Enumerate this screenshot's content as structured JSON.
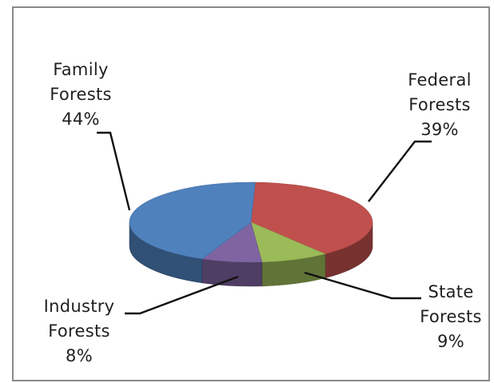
{
  "chart_data": {
    "type": "pie",
    "title": "",
    "slices": [
      {
        "name": "Federal Forests",
        "value": 39,
        "value_label": "39%",
        "label_lines": [
          "Federal",
          "Forests",
          "39%"
        ],
        "color": "#c0504d"
      },
      {
        "name": "State Forests",
        "value": 9,
        "value_label": "9%",
        "label_lines": [
          "State",
          "Forests",
          "9%"
        ],
        "color": "#9bbb59"
      },
      {
        "name": "Industry Forests",
        "value": 8,
        "value_label": "8%",
        "label_lines": [
          "Industry",
          "Forests",
          "8%"
        ],
        "color": "#8064a2"
      },
      {
        "name": "Family Forests",
        "value": 44,
        "value_label": "44%",
        "label_lines": [
          "Family",
          "Forests",
          "44%"
        ],
        "color": "#4f81bd"
      }
    ],
    "style": "3D",
    "legend": "none"
  }
}
